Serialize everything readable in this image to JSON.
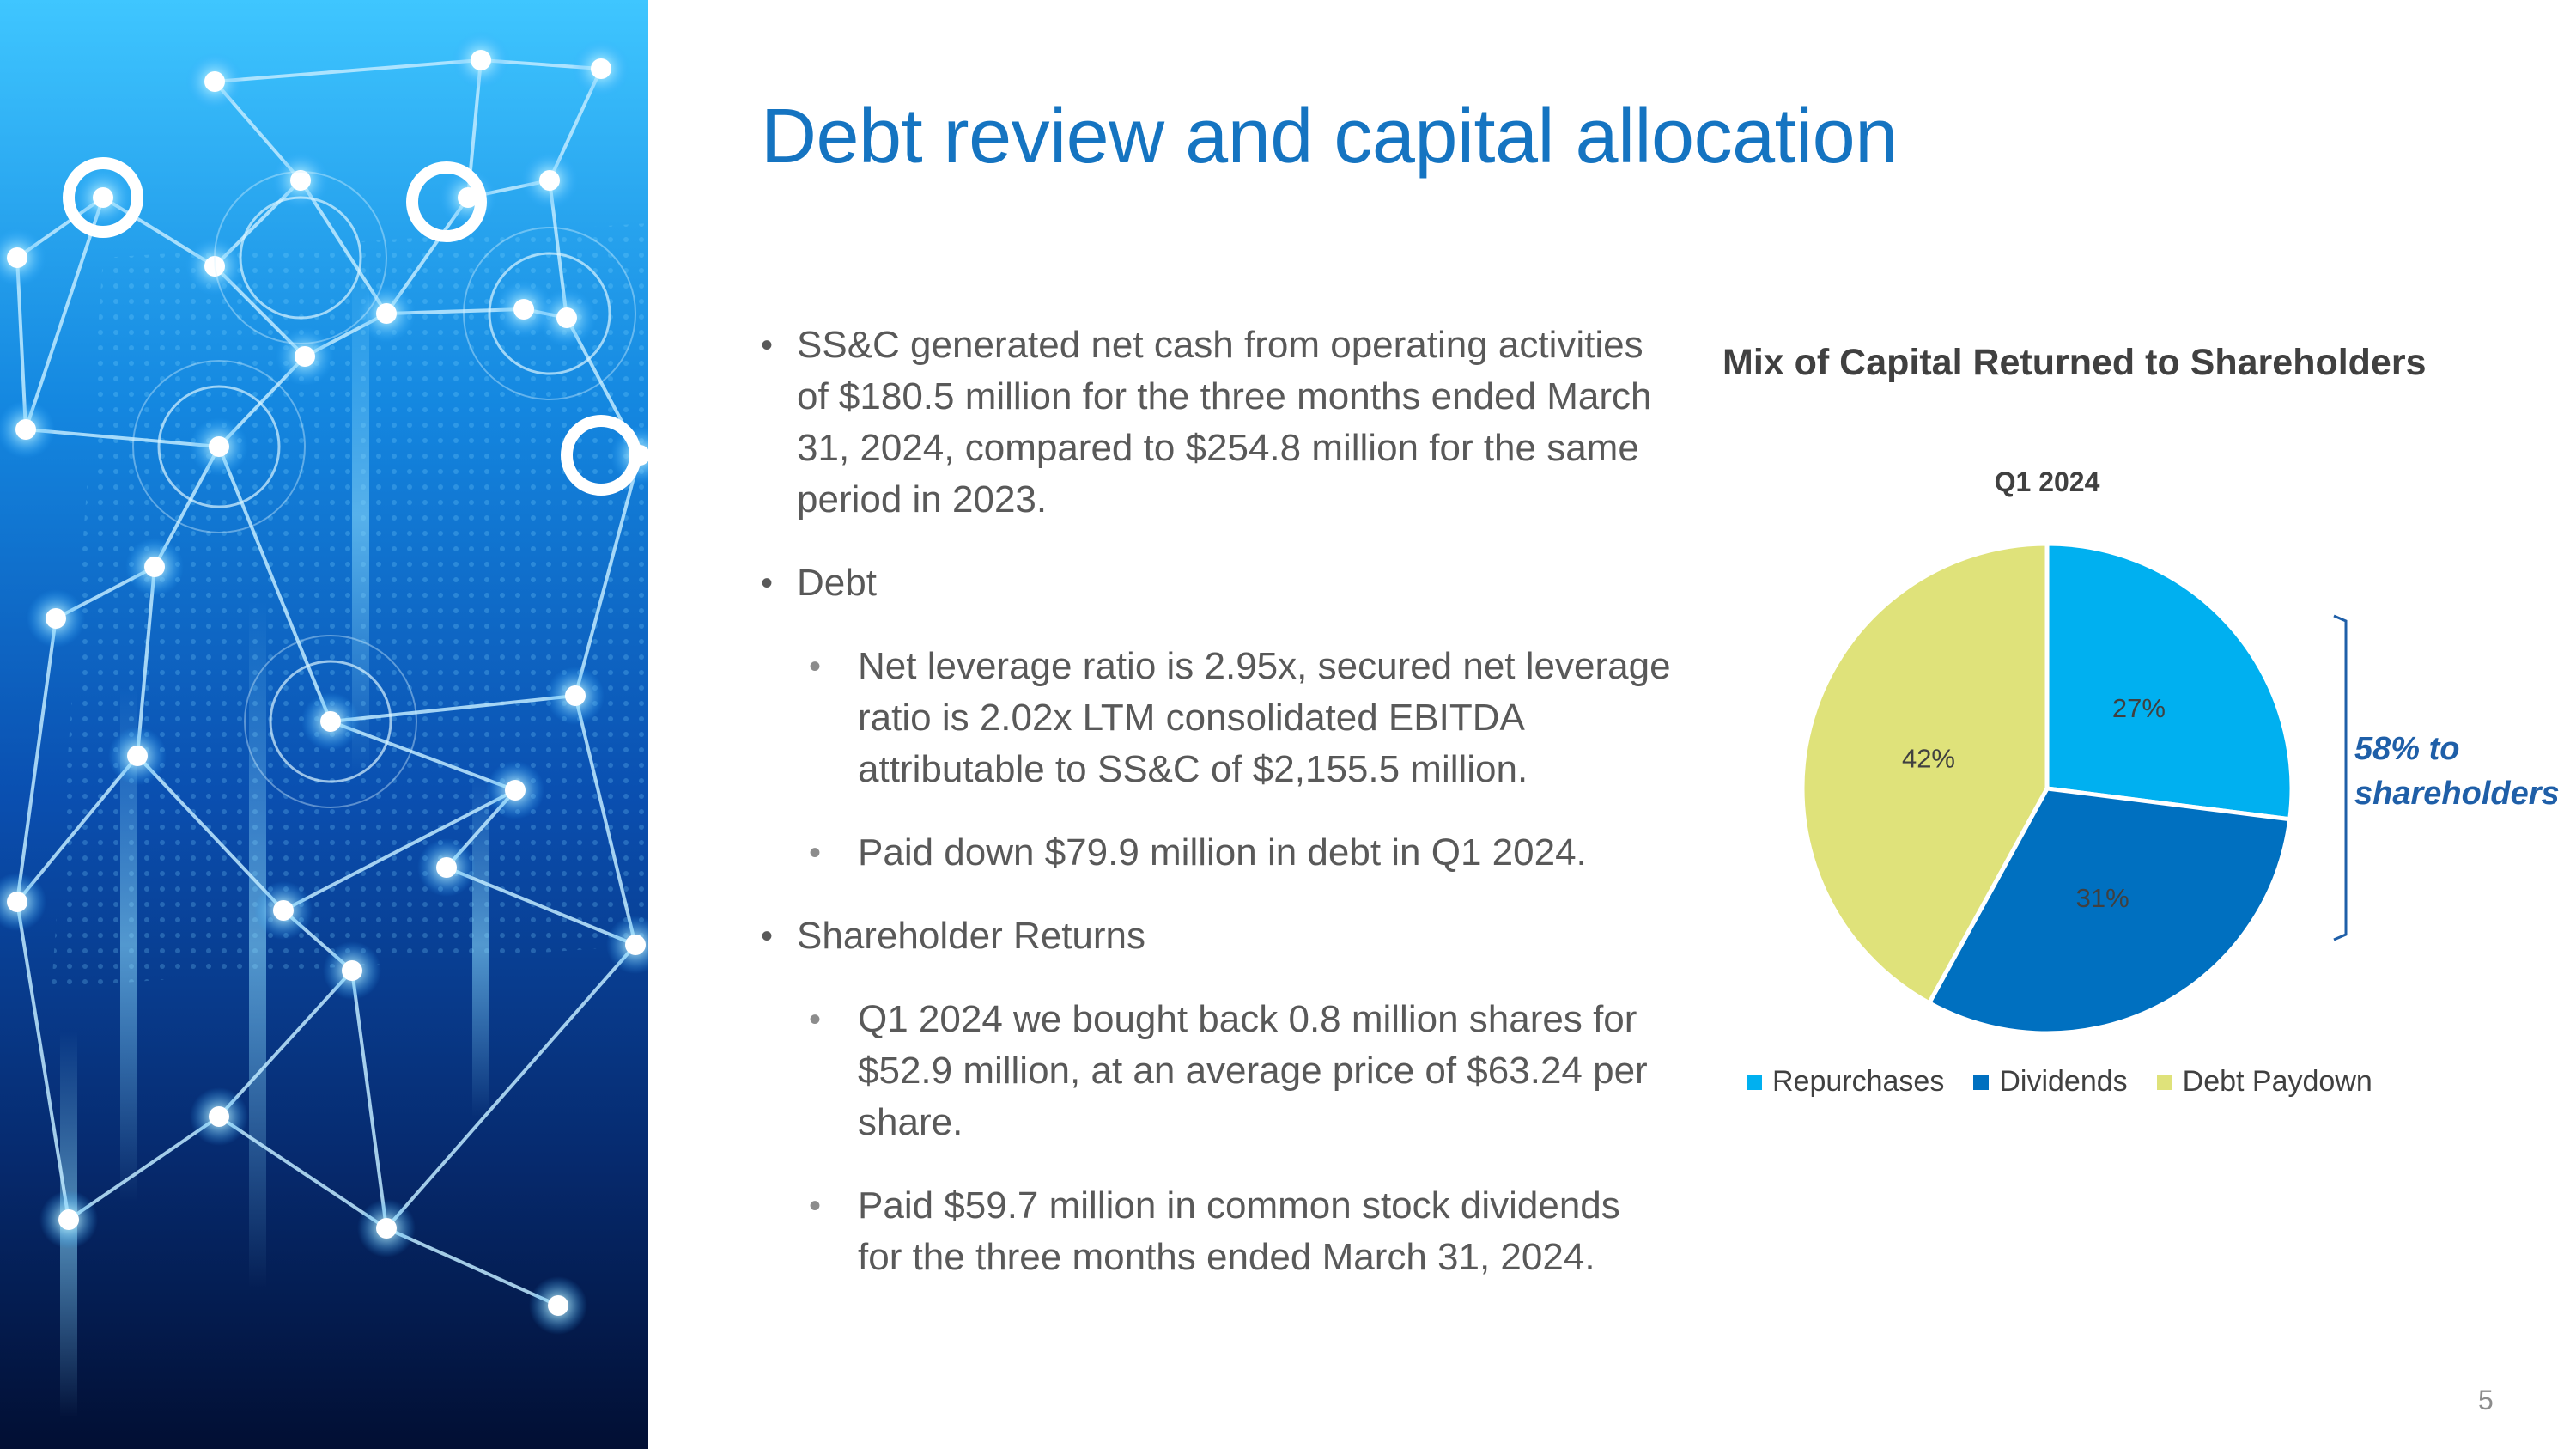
{
  "slide": {
    "title": "Debt review and capital allocation",
    "page_number": "5"
  },
  "bullets": [
    {
      "level": 1,
      "text": "SS&C generated net cash from operating activities of $180.5 million for the three months ended March 31, 2024, compared to $254.8 million for the same period in 2023."
    },
    {
      "level": 1,
      "text": "Debt"
    },
    {
      "level": 2,
      "text": "Net leverage ratio is 2.95x, secured net leverage ratio is 2.02x LTM consolidated EBITDA attributable to SS&C of $2,155.5 million."
    },
    {
      "level": 2,
      "text": "Paid down $79.9 million in debt in Q1 2024."
    },
    {
      "level": 1,
      "text": "Shareholder Returns"
    },
    {
      "level": 2,
      "text": "Q1 2024 we bought back 0.8 million shares for $52.9 million, at an average price of $63.24 per share."
    },
    {
      "level": 2,
      "text": "Paid $59.7 million in common stock dividends for the three months ended March 31, 2024."
    }
  ],
  "callout": {
    "line1": "58%  to",
    "line2": "shareholders",
    "color": "#1f5fa8"
  },
  "chart_data": {
    "type": "pie",
    "title": "Mix of Capital Returned to Shareholders",
    "subtitle": "Q1 2024",
    "categories": [
      "Repurchases",
      "Dividends",
      "Debt Paydown"
    ],
    "values": [
      27,
      31,
      42
    ],
    "labels": [
      "27%",
      "31%",
      "42%"
    ],
    "colors": [
      "#00b0f0",
      "#0070c0",
      "#dfe27a"
    ],
    "legend": "bottom"
  },
  "hero_image": {
    "description_colors": [
      "#03143a",
      "#0a4fa8",
      "#39c3ff",
      "#ffffff"
    ]
  }
}
